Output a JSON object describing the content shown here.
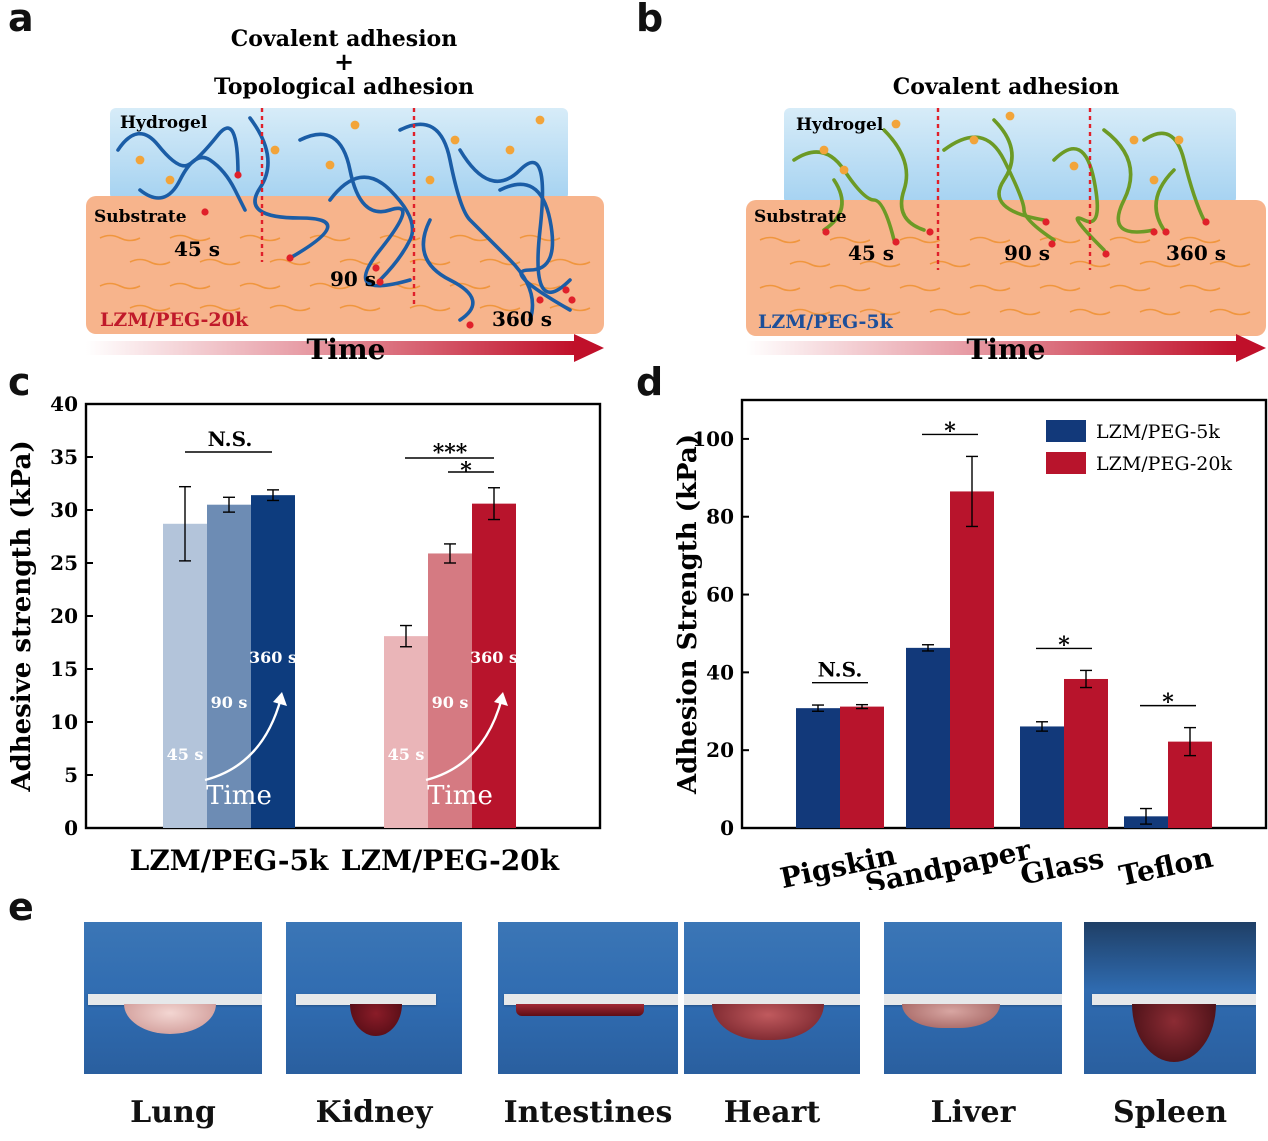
{
  "panels": {
    "a": {
      "letter": "a",
      "title_line1": "Covalent adhesion",
      "title_plus": "+",
      "title_line2": "Topological adhesion",
      "hydrogel": "Hydrogel",
      "substrate": "Substrate",
      "times": [
        "45 s",
        "90 s",
        "360 s"
      ],
      "material": "LZM/PEG-20k",
      "axis": "Time",
      "chain_color": "#1b5da6"
    },
    "b": {
      "letter": "b",
      "title": "Covalent adhesion",
      "hydrogel": "Hydrogel",
      "substrate": "Substrate",
      "times": [
        "45 s",
        "90 s",
        "360 s"
      ],
      "material": "LZM/PEG-5k",
      "axis": "Time",
      "chain_color": "#6c9a25"
    },
    "c": {
      "letter": "c"
    },
    "d": {
      "letter": "d"
    },
    "e": {
      "letter": "e"
    }
  },
  "chart_data": [
    {
      "id": "c",
      "type": "bar",
      "ylabel": "Adhesive strength (kPa)",
      "ylim": [
        0,
        40
      ],
      "yticks": [
        0,
        5,
        10,
        15,
        20,
        25,
        30,
        35,
        40
      ],
      "groups": [
        {
          "name": "LZM/PEG-5k",
          "bars": [
            {
              "label": "45 s",
              "value": 28.7,
              "err": 3.5,
              "color": "#b3c4da"
            },
            {
              "label": "90 s",
              "value": 30.5,
              "err": 0.7,
              "color": "#6d8cb4"
            },
            {
              "label": "360 s",
              "value": 31.4,
              "err": 0.5,
              "color": "#0d3c7e"
            }
          ],
          "sig": [
            "N.S."
          ]
        },
        {
          "name": "LZM/PEG-20k",
          "bars": [
            {
              "label": "45 s",
              "value": 18.1,
              "err": 1.0,
              "color": "#eab5b8"
            },
            {
              "label": "90 s",
              "value": 25.9,
              "err": 0.9,
              "color": "#d57a82"
            },
            {
              "label": "360 s",
              "value": 30.6,
              "err": 1.5,
              "color": "#b8142c"
            }
          ],
          "sig": [
            "***",
            "*"
          ]
        }
      ],
      "arrow_label": "Time"
    },
    {
      "id": "d",
      "type": "bar",
      "ylabel": "Adhesion Strength (kPa)",
      "ylim": [
        0,
        110
      ],
      "yticks": [
        0,
        20,
        40,
        60,
        80,
        100
      ],
      "categories": [
        "Pigskin",
        "Sandpaper",
        "Glass",
        "Teflon"
      ],
      "series": [
        {
          "name": "LZM/PEG-5k",
          "color": "#12397a",
          "values": [
            30.8,
            46.3,
            26.1,
            3.0
          ],
          "err": [
            0.8,
            0.8,
            1.2,
            2.0
          ]
        },
        {
          "name": "LZM/PEG-20k",
          "color": "#b8142c",
          "values": [
            31.2,
            86.5,
            38.3,
            22.2
          ],
          "err": [
            0.5,
            9.0,
            2.2,
            3.6
          ]
        }
      ],
      "sig": [
        "N.S.",
        "*",
        "*",
        "*"
      ],
      "legend": "top-right"
    }
  ],
  "organs": [
    "Lung",
    "Kidney",
    "Intestines",
    "Heart",
    "Liver",
    "Spleen"
  ]
}
